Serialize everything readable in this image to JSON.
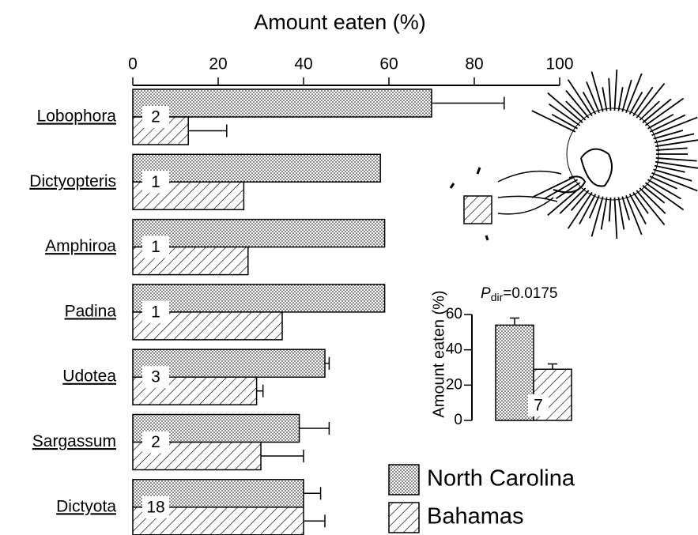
{
  "chart_data": [
    {
      "type": "hbar",
      "title": "Amount eaten (%)",
      "categories": [
        "Lobophora",
        "Dictyopteris",
        "Amphiroa",
        "Padina",
        "Udotea",
        "Sargassum",
        "Dictyota"
      ],
      "n_labels": [
        2,
        1,
        1,
        1,
        3,
        2,
        18
      ],
      "series": [
        {
          "name": "North Carolina",
          "color": "#000000",
          "pattern": "dots",
          "values": [
            70,
            58,
            59,
            59,
            45,
            39,
            40
          ],
          "errors": [
            17,
            null,
            null,
            null,
            1,
            7,
            4
          ]
        },
        {
          "name": "Bahamas",
          "color": "#000000",
          "pattern": "hatch",
          "values": [
            13,
            26,
            27,
            35,
            29,
            30,
            40
          ],
          "errors": [
            9,
            null,
            null,
            null,
            1.5,
            10,
            5
          ]
        }
      ],
      "xlim": [
        0,
        100
      ],
      "xticks": [
        0,
        20,
        40,
        60,
        80,
        100
      ]
    },
    {
      "type": "bar",
      "ylabel": "Amount eaten (%)",
      "annotation": {
        "symbol": "P",
        "subscript": "dir",
        "text": "=0.0175"
      },
      "n_label": 7,
      "series": [
        {
          "pattern": "dots",
          "values": [
            54
          ],
          "errors": [
            4
          ]
        },
        {
          "pattern": "hatch",
          "values": [
            29
          ],
          "errors": [
            3
          ]
        }
      ],
      "ylim": [
        0,
        60
      ],
      "yticks": [
        0,
        20,
        40,
        60
      ]
    }
  ]
}
